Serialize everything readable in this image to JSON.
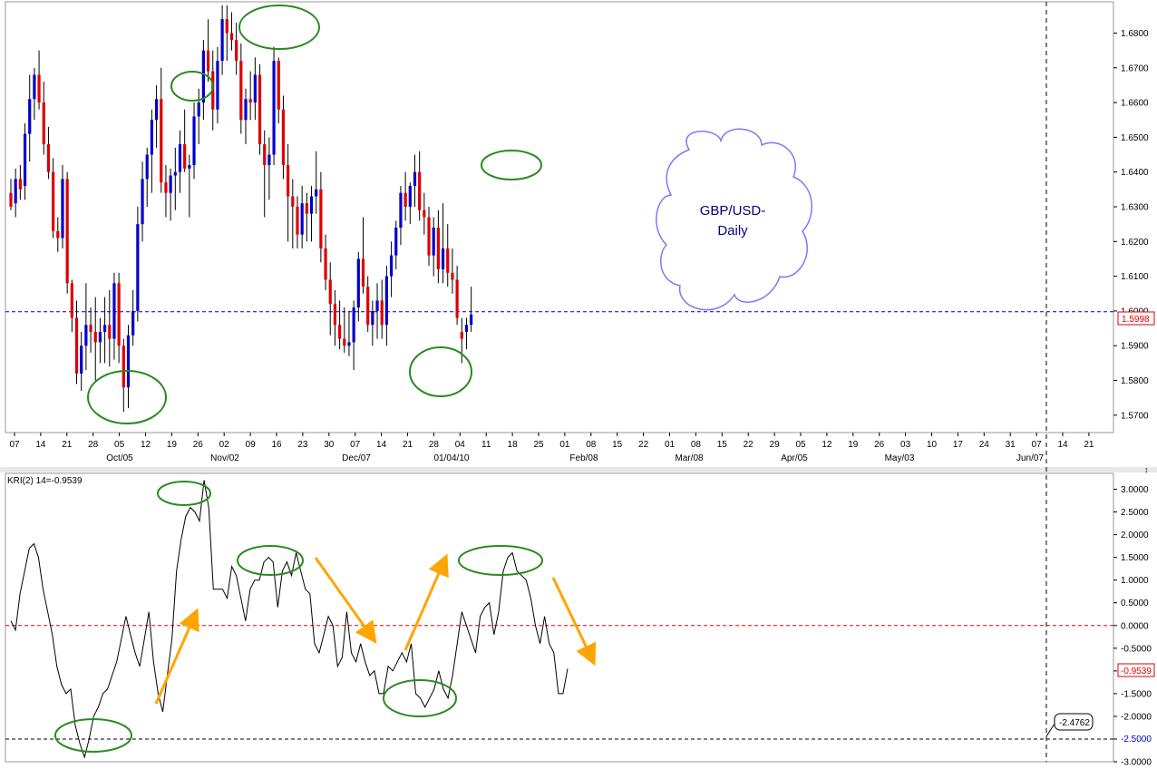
{
  "chart_data": [
    {
      "type": "candlestick",
      "title": "GBP/USD-Daily",
      "annotation_text": [
        "GBP/USD-",
        "Daily"
      ],
      "ylim": [
        1.565,
        1.689
      ],
      "y_ticks": [
        "1.5700",
        "1.5800",
        "1.5900",
        "1.6000",
        "1.6100",
        "1.6200",
        "1.6300",
        "1.6400",
        "1.6500",
        "1.6600",
        "1.6700",
        "1.6800"
      ],
      "current_price": "1.5998",
      "x_day_ticks": [
        "07",
        "14",
        "21",
        "28",
        "05",
        "12",
        "19",
        "26",
        "02",
        "09",
        "16",
        "23",
        "30",
        "07",
        "14",
        "21",
        "28",
        "04",
        "11",
        "18",
        "25",
        "01",
        "08",
        "15",
        "22",
        "01",
        "08",
        "15",
        "22",
        "29",
        "05",
        "12",
        "19",
        "26",
        "03",
        "10",
        "17",
        "24",
        "31",
        "07",
        "14",
        "21"
      ],
      "x_month_labels": [
        "Oct/05",
        "Nov/02",
        "Dec/07",
        "01/04/10",
        "Feb/08",
        "Mar/08",
        "Apr/05",
        "May/03",
        "Jun/07"
      ],
      "candle_colors": {
        "up": "#0000cc",
        "down": "#dd0000",
        "wick": "#000000"
      },
      "candles": [
        [
          1.634,
          1.638,
          1.629,
          1.63
        ],
        [
          1.631,
          1.641,
          1.627,
          1.638
        ],
        [
          1.638,
          1.642,
          1.632,
          1.635
        ],
        [
          1.636,
          1.654,
          1.632,
          1.651
        ],
        [
          1.651,
          1.668,
          1.643,
          1.661
        ],
        [
          1.661,
          1.67,
          1.655,
          1.668
        ],
        [
          1.668,
          1.675,
          1.658,
          1.66
        ],
        [
          1.66,
          1.666,
          1.645,
          1.648
        ],
        [
          1.648,
          1.653,
          1.638,
          1.64
        ],
        [
          1.64,
          1.644,
          1.621,
          1.623
        ],
        [
          1.623,
          1.627,
          1.617,
          1.621
        ],
        [
          1.621,
          1.642,
          1.618,
          1.638
        ],
        [
          1.638,
          1.64,
          1.605,
          1.608
        ],
        [
          1.608,
          1.609,
          1.594,
          1.598
        ],
        [
          1.598,
          1.603,
          1.579,
          1.582
        ],
        [
          1.582,
          1.594,
          1.577,
          1.59
        ],
        [
          1.59,
          1.608,
          1.583,
          1.596
        ],
        [
          1.596,
          1.601,
          1.588,
          1.594
        ],
        [
          1.594,
          1.604,
          1.58,
          1.591
        ],
        [
          1.591,
          1.598,
          1.585,
          1.594
        ],
        [
          1.594,
          1.604,
          1.585,
          1.596
        ],
        [
          1.596,
          1.606,
          1.584,
          1.592
        ],
        [
          1.592,
          1.611,
          1.586,
          1.608
        ],
        [
          1.608,
          1.611,
          1.585,
          1.59
        ],
        [
          1.59,
          1.592,
          1.571,
          1.578
        ],
        [
          1.578,
          1.596,
          1.572,
          1.593
        ],
        [
          1.593,
          1.606,
          1.59,
          1.6
        ],
        [
          1.6,
          1.63,
          1.597,
          1.625
        ],
        [
          1.625,
          1.643,
          1.62,
          1.638
        ],
        [
          1.638,
          1.647,
          1.63,
          1.645
        ],
        [
          1.645,
          1.658,
          1.634,
          1.655
        ],
        [
          1.655,
          1.665,
          1.647,
          1.661
        ],
        [
          1.661,
          1.67,
          1.634,
          1.637
        ],
        [
          1.637,
          1.642,
          1.627,
          1.634
        ],
        [
          1.634,
          1.641,
          1.626,
          1.639
        ],
        [
          1.639,
          1.647,
          1.629,
          1.64
        ],
        [
          1.64,
          1.652,
          1.634,
          1.648
        ],
        [
          1.648,
          1.658,
          1.64,
          1.641
        ],
        [
          1.641,
          1.645,
          1.627,
          1.642
        ],
        [
          1.642,
          1.66,
          1.638,
          1.656
        ],
        [
          1.656,
          1.664,
          1.648,
          1.66
        ],
        [
          1.66,
          1.678,
          1.655,
          1.675
        ],
        [
          1.675,
          1.684,
          1.666,
          1.669
        ],
        [
          1.669,
          1.675,
          1.652,
          1.658
        ],
        [
          1.658,
          1.676,
          1.654,
          1.672
        ],
        [
          1.672,
          1.688,
          1.668,
          1.684
        ],
        [
          1.684,
          1.688,
          1.672,
          1.68
        ],
        [
          1.68,
          1.686,
          1.675,
          1.678
        ],
        [
          1.678,
          1.683,
          1.668,
          1.672
        ],
        [
          1.672,
          1.677,
          1.651,
          1.655
        ],
        [
          1.655,
          1.664,
          1.648,
          1.661
        ],
        [
          1.661,
          1.669,
          1.655,
          1.66
        ],
        [
          1.66,
          1.673,
          1.655,
          1.668
        ],
        [
          1.668,
          1.671,
          1.645,
          1.648
        ],
        [
          1.648,
          1.652,
          1.627,
          1.642
        ],
        [
          1.642,
          1.65,
          1.632,
          1.645
        ],
        [
          1.645,
          1.676,
          1.642,
          1.672
        ],
        [
          1.672,
          1.673,
          1.654,
          1.658
        ],
        [
          1.658,
          1.662,
          1.638,
          1.642
        ],
        [
          1.642,
          1.648,
          1.62,
          1.633
        ],
        [
          1.633,
          1.638,
          1.618,
          1.63
        ],
        [
          1.63,
          1.633,
          1.618,
          1.622
        ],
        [
          1.622,
          1.636,
          1.618,
          1.631
        ],
        [
          1.631,
          1.634,
          1.62,
          1.628
        ],
        [
          1.628,
          1.636,
          1.62,
          1.633
        ],
        [
          1.633,
          1.646,
          1.628,
          1.635
        ],
        [
          1.635,
          1.64,
          1.614,
          1.618
        ],
        [
          1.618,
          1.622,
          1.606,
          1.609
        ],
        [
          1.609,
          1.614,
          1.593,
          1.602
        ],
        [
          1.602,
          1.606,
          1.59,
          1.596
        ],
        [
          1.596,
          1.603,
          1.589,
          1.592
        ],
        [
          1.592,
          1.601,
          1.588,
          1.59
        ],
        [
          1.59,
          1.6,
          1.587,
          1.591
        ],
        [
          1.591,
          1.603,
          1.583,
          1.601
        ],
        [
          1.601,
          1.617,
          1.597,
          1.615
        ],
        [
          1.615,
          1.627,
          1.605,
          1.607
        ],
        [
          1.607,
          1.61,
          1.594,
          1.596
        ],
        [
          1.596,
          1.603,
          1.59,
          1.6
        ],
        [
          1.6,
          1.608,
          1.592,
          1.603
        ],
        [
          1.603,
          1.609,
          1.592,
          1.596
        ],
        [
          1.596,
          1.613,
          1.59,
          1.61
        ],
        [
          1.61,
          1.62,
          1.604,
          1.616
        ],
        [
          1.616,
          1.626,
          1.612,
          1.624
        ],
        [
          1.624,
          1.636,
          1.619,
          1.634
        ],
        [
          1.634,
          1.64,
          1.626,
          1.63
        ],
        [
          1.63,
          1.637,
          1.625,
          1.636
        ],
        [
          1.636,
          1.645,
          1.63,
          1.64
        ],
        [
          1.64,
          1.646,
          1.626,
          1.629
        ],
        [
          1.629,
          1.634,
          1.622,
          1.627
        ],
        [
          1.627,
          1.63,
          1.613,
          1.616
        ],
        [
          1.616,
          1.627,
          1.61,
          1.624
        ],
        [
          1.624,
          1.629,
          1.608,
          1.612
        ],
        [
          1.612,
          1.631,
          1.608,
          1.618
        ],
        [
          1.618,
          1.625,
          1.607,
          1.611
        ],
        [
          1.611,
          1.618,
          1.605,
          1.609
        ],
        [
          1.609,
          1.613,
          1.596,
          1.598
        ],
        [
          1.594,
          1.598,
          1.585,
          1.592
        ],
        [
          1.594,
          1.598,
          1.589,
          1.596
        ],
        [
          1.596,
          1.607,
          1.594,
          1.599
        ]
      ]
    },
    {
      "type": "line",
      "series": [
        {
          "name": "KRI(2) 14",
          "color": "#000000"
        }
      ],
      "legend_text": "KRI(2) 14=-0.9539",
      "ylim": [
        -3.0,
        3.35
      ],
      "y_ticks": [
        "-3.0000",
        "-2.5000",
        "-2.0000",
        "-1.5000",
        "-1.0000",
        "-0.5000",
        "0.0000",
        "0.5000",
        "1.0000",
        "1.5000",
        "2.0000",
        "2.5000",
        "3.0000"
      ],
      "current_value": "-0.9539",
      "zero_line": 0.0,
      "support_line": -2.5,
      "support_label": "-2.5000",
      "callout_value": "-2.4762",
      "values": [
        0.1,
        -0.1,
        0.7,
        1.2,
        1.7,
        1.8,
        1.5,
        0.8,
        0.3,
        -0.2,
        -0.9,
        -1.3,
        -1.5,
        -1.4,
        -2.2,
        -2.6,
        -2.9,
        -2.5,
        -2.0,
        -1.8,
        -1.5,
        -1.4,
        -1.1,
        -0.8,
        -0.3,
        0.2,
        -0.2,
        -0.6,
        -0.9,
        -0.3,
        0.3,
        -0.8,
        -1.5,
        -1.9,
        -1.1,
        -0.3,
        1.2,
        1.9,
        2.4,
        2.6,
        2.5,
        2.3,
        3.2,
        2.6,
        0.8,
        0.8,
        0.8,
        0.6,
        1.3,
        1.1,
        0.6,
        0.1,
        0.8,
        1.0,
        1.0,
        1.4,
        1.5,
        1.4,
        0.4,
        1.2,
        1.4,
        1.1,
        1.6,
        1.2,
        0.8,
        0.7,
        -0.4,
        -0.6,
        -0.2,
        0.2,
        0.0,
        -0.9,
        -0.7,
        0.3,
        -0.6,
        -0.8,
        -0.4,
        -0.8,
        -1.1,
        -1.0,
        -1.5,
        -1.5,
        -0.9,
        -1.0,
        -0.8,
        -0.6,
        -0.8,
        -0.4,
        -1.5,
        -1.6,
        -1.8,
        -1.6,
        -1.4,
        -1.0,
        -1.4,
        -1.6,
        -1.1,
        -0.4,
        0.3,
        0.0,
        -0.3,
        -0.6,
        0.2,
        0.4,
        0.5,
        -0.2,
        0.3,
        1.2,
        1.5,
        1.6,
        1.2,
        1.1,
        1.0,
        0.6,
        0.0,
        -0.4,
        0.2,
        -0.4,
        -0.6,
        -1.5,
        -1.5,
        -0.95
      ]
    }
  ]
}
